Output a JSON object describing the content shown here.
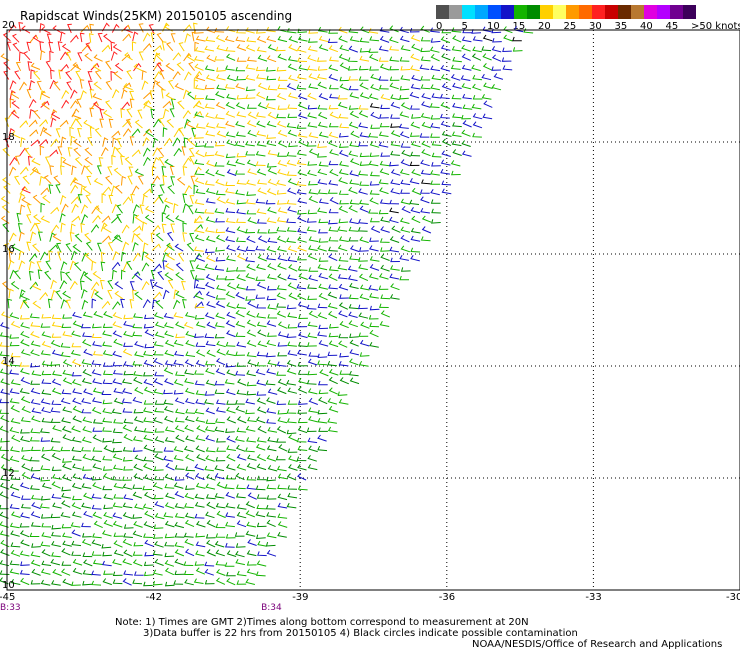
{
  "title": "Rapidscat Winds(25KM) 20150105 ascending",
  "legend": {
    "colors": [
      "#505050",
      "#9a9a9a",
      "#00e0ff",
      "#00a8ff",
      "#0050ff",
      "#1414c8",
      "#14b400",
      "#008c00",
      "#ffd000",
      "#ffff60",
      "#ff9a00",
      "#ff6a00",
      "#ff2020",
      "#c80000",
      "#6a2a00",
      "#b87830",
      "#e000e0",
      "#b400ff",
      "#700090",
      "#3c005a"
    ],
    "labels": [
      "0",
      "5",
      "10",
      "15",
      "20",
      "25",
      "30",
      "35",
      "40",
      "45",
      ">50 knots"
    ]
  },
  "axes": {
    "lon_ticks": [
      "-45",
      "-42",
      "-39",
      "-36",
      "-33",
      "-30"
    ],
    "lat_ticks": [
      "20",
      "18",
      "16",
      "14",
      "12",
      "10"
    ],
    "lon_range": [
      -45,
      -30
    ],
    "lat_range": [
      10,
      20
    ],
    "grid": "dotted"
  },
  "times": [
    {
      "label": "B:33",
      "lon": -45
    },
    {
      "label": "B:34",
      "lon": -39.8
    }
  ],
  "swath": {
    "edge": [
      [
        -34.2,
        20
      ],
      [
        -39.8,
        10
      ]
    ]
  },
  "notes": [
    "Note: 1) Times are GMT 2)Times along bottom correspond to measurement at 20N",
    "3)Data buffer is 22 hrs from 20150105 4) Black circles indicate possible contamination",
    "NOAA/NESDIS/Office of Research and Applications"
  ]
}
